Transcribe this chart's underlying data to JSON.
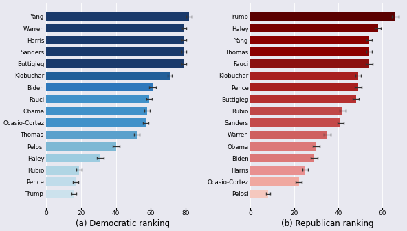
{
  "dem_labels": [
    "Yang",
    "Warren",
    "Harris",
    "Sanders",
    "Buttigieg",
    "Klobuchar",
    "Biden",
    "Fauci",
    "Obama",
    "Ocasio-Cortez",
    "Thomas",
    "Pelosi",
    "Haley",
    "Rubio",
    "Pence",
    "Trump"
  ],
  "dem_values": [
    82,
    79,
    79,
    79,
    79,
    71,
    61,
    59,
    58,
    57,
    52,
    40,
    31,
    19,
    17,
    16
  ],
  "dem_errors": [
    1.5,
    1.2,
    1.5,
    1.5,
    1.5,
    1.2,
    2.0,
    1.5,
    1.5,
    1.5,
    1.5,
    2.0,
    2.0,
    1.5,
    1.5,
    1.5
  ],
  "dem_colors": [
    "#1a3a6b",
    "#1a3a6b",
    "#1a3a6b",
    "#1a3a6b",
    "#1a3a6b",
    "#215f99",
    "#2e78bc",
    "#4191c9",
    "#4191c9",
    "#4191c9",
    "#5aa0cc",
    "#7db8d4",
    "#9dcce0",
    "#b0d5e4",
    "#c0dcea",
    "#cce2ed"
  ],
  "dem_hatch": [
    false,
    false,
    false,
    false,
    false,
    false,
    false,
    false,
    false,
    false,
    false,
    false,
    true,
    true,
    true,
    true
  ],
  "rep_labels": [
    "Trump",
    "Haley",
    "Yang",
    "Thomas",
    "Fauci",
    "Klobuchar",
    "Pence",
    "Buttigieg",
    "Rubio",
    "Sanders",
    "Warren",
    "Obama",
    "Biden",
    "Harris",
    "Ocasio-Cortez",
    "Pelosi"
  ],
  "rep_values": [
    66,
    58,
    54,
    54,
    54,
    49,
    49,
    48,
    42,
    41,
    35,
    30,
    29,
    25,
    22,
    8
  ],
  "rep_errors": [
    1.5,
    1.5,
    1.2,
    1.2,
    1.5,
    1.2,
    1.5,
    1.5,
    1.5,
    1.5,
    1.5,
    1.5,
    1.5,
    1.2,
    1.5,
    1.0
  ],
  "rep_colors": [
    "#5a0000",
    "#780000",
    "#8b0000",
    "#8b0000",
    "#8b1010",
    "#a82020",
    "#a82020",
    "#b53030",
    "#c04848",
    "#c44a4a",
    "#cf6060",
    "#dc7878",
    "#dc7878",
    "#e89090",
    "#f0a8a0",
    "#f5c8be"
  ],
  "rep_hatch": [
    false,
    false,
    false,
    false,
    false,
    false,
    false,
    false,
    false,
    false,
    false,
    true,
    true,
    true,
    true,
    true
  ],
  "dem_title": "(a) Democratic ranking",
  "rep_title": "(b) Republican ranking",
  "dem_xlim": [
    0,
    88
  ],
  "rep_xlim": [
    0,
    70
  ],
  "dem_xticks": [
    0,
    20,
    40,
    60,
    80
  ],
  "rep_xticks": [
    0,
    20,
    40,
    60
  ],
  "background_color": "#e8e8f0",
  "bar_height": 0.72,
  "label_fontsize": 6.2,
  "tick_fontsize": 6.5,
  "title_fontsize": 8.5
}
